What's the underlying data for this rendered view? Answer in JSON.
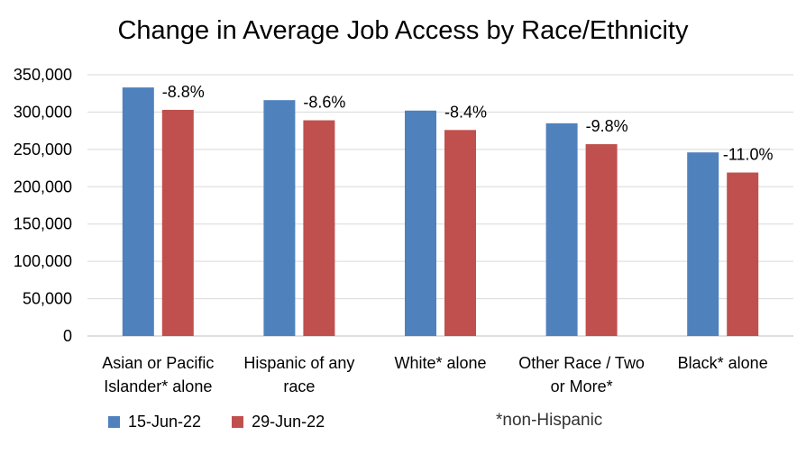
{
  "chart_data": {
    "type": "bar",
    "title": "Change in Average Job Access by Race/Ethnicity",
    "categories": [
      [
        "Asian or Pacific",
        "Islander* alone"
      ],
      [
        "Hispanic of any",
        "race"
      ],
      [
        "White* alone"
      ],
      [
        "Other Race / Two",
        "or More*"
      ],
      [
        "Black* alone"
      ]
    ],
    "series": [
      {
        "name": "15-Jun-22",
        "color": "#4F81BD",
        "values": [
          333000,
          316000,
          302000,
          285000,
          246000
        ]
      },
      {
        "name": "29-Jun-22",
        "color": "#C0504D",
        "values": [
          303000,
          289000,
          276000,
          257000,
          219000
        ]
      }
    ],
    "data_labels": [
      "-8.8%",
      "-8.6%",
      "-8.4%",
      "-9.8%",
      "-11.0%"
    ],
    "y_ticks": [
      "0",
      "50,000",
      "100,000",
      "150,000",
      "200,000",
      "250,000",
      "300,000",
      "350,000"
    ],
    "ylim": [
      0,
      350000
    ],
    "grid": true,
    "legend_position": "bottom-left",
    "footnote": "*non-Hispanic"
  }
}
